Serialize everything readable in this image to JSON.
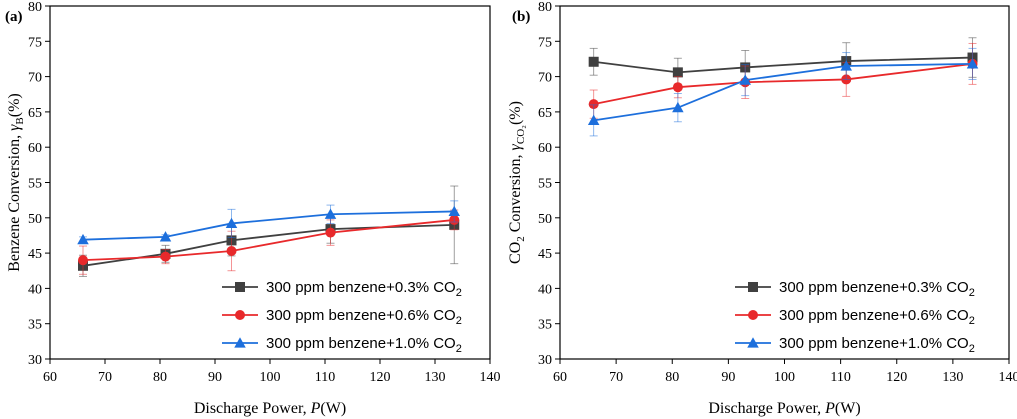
{
  "chart_data": [
    {
      "type": "line",
      "panel_label": "(a)",
      "xlabel": "Discharge Power, ",
      "xlabel_var": "P",
      "xlabel_unit": "(W)",
      "ylabel": "Benzene Conversion, ",
      "ylabel_var": "γ",
      "ylabel_sub": "B",
      "ylabel_unit": "(%)",
      "xlim": [
        60,
        140
      ],
      "ylim": [
        30,
        80
      ],
      "xticks": [
        60,
        70,
        80,
        90,
        100,
        110,
        120,
        130,
        140
      ],
      "yticks": [
        30,
        35,
        40,
        45,
        50,
        55,
        60,
        65,
        70,
        75,
        80
      ],
      "x": [
        66,
        81,
        93,
        111,
        133.5
      ],
      "legend_position": "bottom-right",
      "series": [
        {
          "name": "300 ppm benzene+0.3% CO",
          "name_sub": "2",
          "color": "#404040",
          "marker": "square",
          "values": [
            43.2,
            44.9,
            46.8,
            48.4,
            49.0
          ],
          "errors": [
            1.5,
            1.2,
            2.2,
            2.0,
            5.5
          ]
        },
        {
          "name": "300 ppm benzene+0.6% CO",
          "name_sub": "2",
          "color": "#e8292b",
          "marker": "circle",
          "values": [
            44.0,
            44.5,
            45.3,
            47.9,
            49.7
          ],
          "errors": [
            2.0,
            1.0,
            2.8,
            1.8,
            1.4
          ]
        },
        {
          "name": "300 ppm benzene+1.0% CO",
          "name_sub": "2",
          "color": "#1d6fdc",
          "marker": "triangle",
          "values": [
            46.9,
            47.3,
            49.2,
            50.5,
            50.9
          ],
          "errors": [
            0.4,
            0.3,
            2.0,
            1.3,
            1.5
          ]
        }
      ]
    },
    {
      "type": "line",
      "panel_label": "(b)",
      "xlabel": "Discharge Power, ",
      "xlabel_var": "P",
      "xlabel_unit": "(W)",
      "ylabel": "CO",
      "ylabel_pre_sub": "2",
      "ylabel_mid": " Conversion, ",
      "ylabel_var": "γ",
      "ylabel_sub": "CO₂",
      "ylabel_unit": "(%)",
      "xlim": [
        60,
        140
      ],
      "ylim": [
        30,
        80
      ],
      "xticks": [
        60,
        70,
        80,
        90,
        100,
        110,
        120,
        130,
        140
      ],
      "yticks": [
        30,
        35,
        40,
        45,
        50,
        55,
        60,
        65,
        70,
        75,
        80
      ],
      "x": [
        66,
        81,
        93,
        111,
        133.5
      ],
      "legend_position": "bottom-right",
      "series": [
        {
          "name": "300 ppm benzene+0.3% CO",
          "name_sub": "2",
          "color": "#404040",
          "marker": "square",
          "values": [
            72.1,
            70.6,
            71.3,
            72.2,
            72.7
          ],
          "errors": [
            1.9,
            2.0,
            2.4,
            2.6,
            2.8
          ]
        },
        {
          "name": "300 ppm benzene+0.6% CO",
          "name_sub": "2",
          "color": "#e8292b",
          "marker": "circle",
          "values": [
            66.1,
            68.5,
            69.2,
            69.6,
            71.8
          ],
          "errors": [
            2.0,
            1.5,
            2.3,
            2.4,
            2.9
          ]
        },
        {
          "name": "300 ppm benzene+1.0% CO",
          "name_sub": "2",
          "color": "#1d6fdc",
          "marker": "triangle",
          "values": [
            63.8,
            65.6,
            69.5,
            71.5,
            71.8
          ],
          "errors": [
            2.2,
            2.0,
            2.2,
            1.9,
            2.2
          ]
        }
      ]
    }
  ]
}
